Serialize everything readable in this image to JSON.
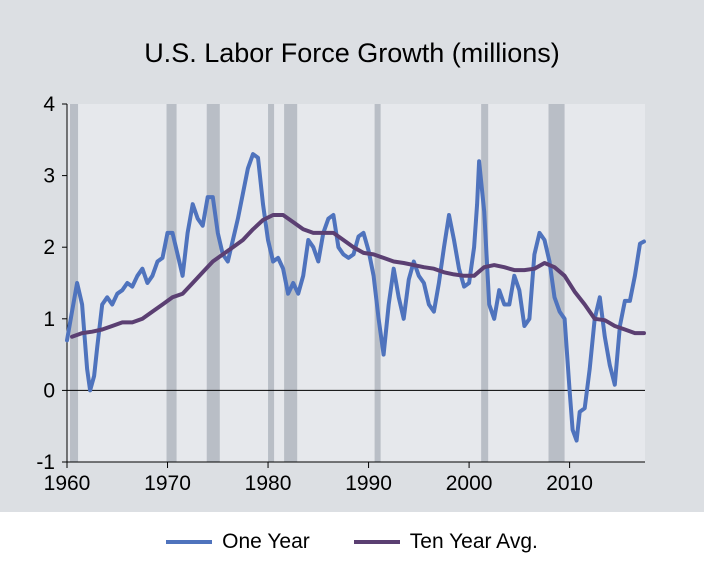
{
  "chart_data": {
    "type": "line",
    "title": "U.S. Labor Force Growth (millions)",
    "xlabel": "",
    "ylabel": "",
    "xlim": [
      1960,
      2017.5
    ],
    "ylim": [
      -1,
      4
    ],
    "x_ticks": [
      1960,
      1970,
      1980,
      1990,
      2000,
      2010
    ],
    "x_tick_labels": [
      "1960",
      "1970",
      "1980",
      "1990",
      "2000",
      "2010"
    ],
    "y_ticks": [
      -1,
      0,
      1,
      2,
      3,
      4
    ],
    "y_tick_labels": [
      "-1",
      "0",
      "1",
      "2",
      "3",
      "4"
    ],
    "grid": false,
    "legend_position": "bottom-center",
    "recession_shading": [
      [
        1960.3,
        1961.1
      ],
      [
        1969.9,
        1970.9
      ],
      [
        1973.9,
        1975.2
      ],
      [
        1980.0,
        1980.6
      ],
      [
        1981.6,
        1982.9
      ],
      [
        1990.6,
        1991.2
      ],
      [
        2001.2,
        2001.9
      ],
      [
        2007.9,
        2009.5
      ]
    ],
    "series": [
      {
        "name": "One Year",
        "color": "#4f73bd",
        "x": [
          1960.0,
          1960.5,
          1961.0,
          1961.5,
          1962.0,
          1962.3,
          1962.7,
          1963.0,
          1963.5,
          1964.0,
          1964.5,
          1965.0,
          1965.5,
          1966.0,
          1966.5,
          1967.0,
          1967.5,
          1968.0,
          1968.5,
          1969.0,
          1969.5,
          1970.0,
          1970.5,
          1971.0,
          1971.5,
          1972.0,
          1972.5,
          1973.0,
          1973.5,
          1974.0,
          1974.5,
          1975.0,
          1975.5,
          1976.0,
          1976.5,
          1977.0,
          1977.5,
          1978.0,
          1978.5,
          1979.0,
          1979.5,
          1980.0,
          1980.5,
          1981.0,
          1981.5,
          1982.0,
          1982.5,
          1983.0,
          1983.5,
          1984.0,
          1984.5,
          1985.0,
          1985.5,
          1986.0,
          1986.5,
          1987.0,
          1987.5,
          1988.0,
          1988.5,
          1989.0,
          1989.5,
          1990.0,
          1990.5,
          1991.0,
          1991.5,
          1992.0,
          1992.5,
          1993.0,
          1993.5,
          1994.0,
          1994.5,
          1995.0,
          1995.5,
          1996.0,
          1996.5,
          1997.0,
          1997.5,
          1998.0,
          1998.5,
          1999.0,
          1999.5,
          2000.0,
          2000.5,
          2000.8,
          2001.0,
          2001.5,
          2002.0,
          2002.5,
          2003.0,
          2003.5,
          2004.0,
          2004.5,
          2005.0,
          2005.5,
          2006.0,
          2006.5,
          2007.0,
          2007.5,
          2008.0,
          2008.5,
          2009.0,
          2009.5,
          2010.0,
          2010.3,
          2010.7,
          2011.0,
          2011.5,
          2012.0,
          2012.5,
          2013.0,
          2013.5,
          2014.0,
          2014.5,
          2015.0,
          2015.5,
          2016.0,
          2016.5,
          2017.0,
          2017.4
        ],
        "y": [
          0.7,
          1.1,
          1.5,
          1.2,
          0.3,
          0.0,
          0.2,
          0.6,
          1.2,
          1.3,
          1.2,
          1.35,
          1.4,
          1.5,
          1.45,
          1.6,
          1.7,
          1.5,
          1.6,
          1.8,
          1.85,
          2.2,
          2.2,
          1.9,
          1.6,
          2.2,
          2.6,
          2.4,
          2.3,
          2.7,
          2.7,
          2.2,
          1.9,
          1.8,
          2.1,
          2.4,
          2.75,
          3.1,
          3.3,
          3.25,
          2.6,
          2.1,
          1.8,
          1.85,
          1.7,
          1.35,
          1.5,
          1.35,
          1.6,
          2.1,
          2.0,
          1.8,
          2.2,
          2.4,
          2.45,
          2.0,
          1.9,
          1.85,
          1.9,
          2.15,
          2.2,
          1.95,
          1.6,
          1.0,
          0.5,
          1.2,
          1.7,
          1.3,
          1.0,
          1.55,
          1.8,
          1.6,
          1.5,
          1.2,
          1.1,
          1.5,
          2.0,
          2.45,
          2.1,
          1.7,
          1.45,
          1.5,
          2.0,
          2.6,
          3.2,
          2.5,
          1.2,
          1.0,
          1.4,
          1.2,
          1.2,
          1.6,
          1.4,
          0.9,
          1.0,
          1.9,
          2.2,
          2.1,
          1.8,
          1.3,
          1.1,
          1.0,
          0.0,
          -0.55,
          -0.7,
          -0.3,
          -0.25,
          0.3,
          1.0,
          1.3,
          0.75,
          0.35,
          0.08,
          0.9,
          1.25,
          1.25,
          1.6,
          2.05,
          2.08
        ]
      },
      {
        "name": "Ten Year Avg.",
        "color": "#5b3f72",
        "x": [
          1960.5,
          1961.5,
          1962.5,
          1963.5,
          1964.5,
          1965.5,
          1966.5,
          1967.5,
          1968.5,
          1969.5,
          1970.5,
          1971.5,
          1972.5,
          1973.5,
          1974.5,
          1975.5,
          1976.5,
          1977.5,
          1978.5,
          1979.5,
          1980.5,
          1981.5,
          1982.5,
          1983.5,
          1984.5,
          1985.5,
          1986.5,
          1987.5,
          1988.5,
          1989.5,
          1990.5,
          1991.5,
          1992.5,
          1993.5,
          1994.5,
          1995.5,
          1996.5,
          1997.5,
          1998.5,
          1999.5,
          2000.5,
          2001.5,
          2002.5,
          2003.5,
          2004.5,
          2005.5,
          2006.5,
          2007.5,
          2008.5,
          2009.5,
          2010.5,
          2011.5,
          2012.5,
          2013.5,
          2014.5,
          2015.5,
          2016.5,
          2017.4
        ],
        "y": [
          0.75,
          0.8,
          0.82,
          0.85,
          0.9,
          0.95,
          0.95,
          1.0,
          1.1,
          1.2,
          1.3,
          1.35,
          1.5,
          1.65,
          1.8,
          1.9,
          2.0,
          2.1,
          2.25,
          2.38,
          2.45,
          2.45,
          2.35,
          2.25,
          2.2,
          2.2,
          2.2,
          2.1,
          2.0,
          1.92,
          1.9,
          1.85,
          1.8,
          1.78,
          1.75,
          1.72,
          1.7,
          1.65,
          1.62,
          1.6,
          1.6,
          1.72,
          1.75,
          1.72,
          1.68,
          1.68,
          1.7,
          1.78,
          1.72,
          1.6,
          1.38,
          1.2,
          1.0,
          0.98,
          0.9,
          0.85,
          0.8,
          0.8
        ]
      }
    ]
  }
}
